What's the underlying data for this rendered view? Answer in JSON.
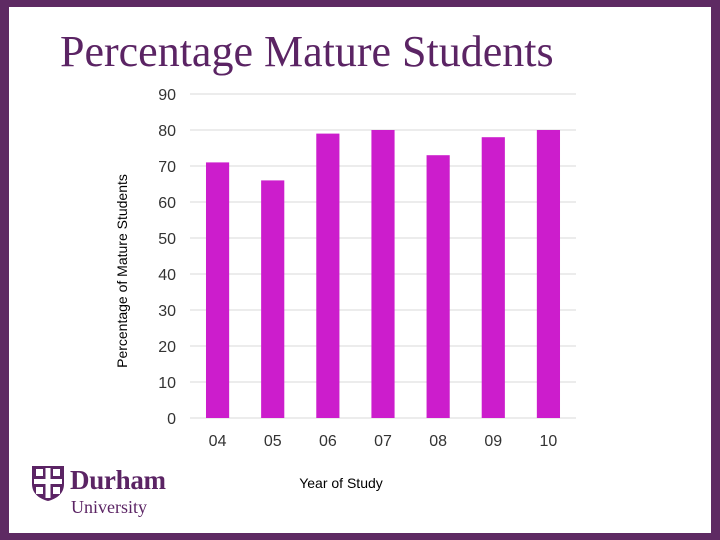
{
  "slide": {
    "title": "Percentage Mature Students"
  },
  "colors": {
    "bar": "#cc1dcc",
    "frame": "#5e2a63",
    "brand": "#5b2464",
    "grid": "#d9d9d9"
  },
  "logo": {
    "name": "Durham",
    "subtitle": "University",
    "icon": "durham-crest-icon"
  },
  "chart_data": {
    "type": "bar",
    "title": "",
    "xlabel": "Year of Study",
    "ylabel": "Percentage of Mature Students",
    "categories": [
      "04",
      "05",
      "06",
      "07",
      "08",
      "09",
      "10"
    ],
    "values": [
      71,
      66,
      79,
      80,
      73,
      78,
      80
    ],
    "ylim": [
      0,
      90
    ],
    "yticks": [
      0,
      10,
      20,
      30,
      40,
      50,
      60,
      70,
      80,
      90
    ],
    "grid": true,
    "legend": "none"
  }
}
